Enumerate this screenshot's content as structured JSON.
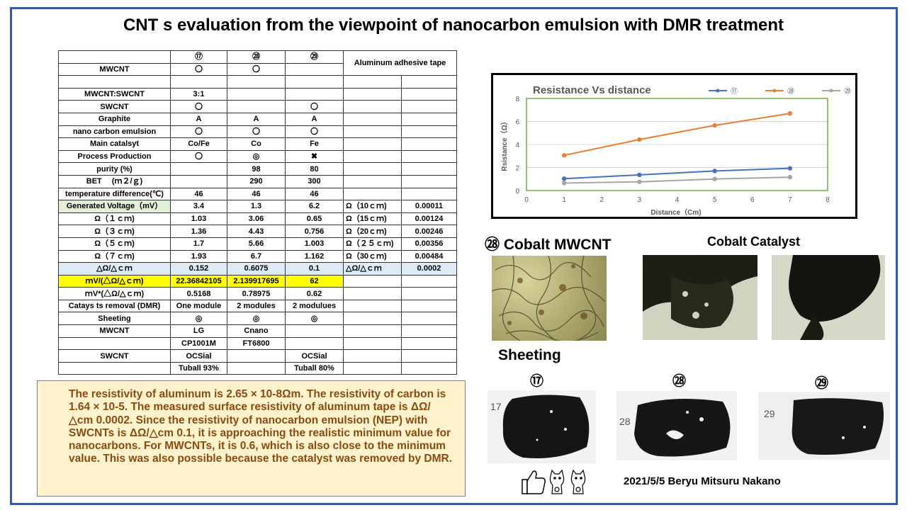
{
  "title": "CNT s  evaluation from the viewpoint of nanocarbon emulsion with DMR treatment",
  "table": {
    "rows": [
      {
        "c": [
          "",
          "⑰",
          "㉘",
          "㉙",
          "Aluminum adhesive tape",
          ""
        ]
      },
      {
        "c": [
          "MWCNT",
          "〇",
          "〇",
          "",
          "",
          ""
        ]
      },
      {
        "c": [
          "",
          "",
          "",
          "",
          "",
          ""
        ]
      },
      {
        "c": [
          "MWCNT:SWCNT",
          "3:1",
          "",
          "",
          "",
          ""
        ]
      },
      {
        "c": [
          "SWCNT",
          "〇",
          "",
          "〇",
          "",
          ""
        ]
      },
      {
        "c": [
          "Graphite",
          "A",
          "A",
          "A",
          "",
          ""
        ]
      },
      {
        "c": [
          "nano carbon emulsion",
          "〇",
          "〇",
          "〇",
          "",
          ""
        ]
      },
      {
        "c": [
          "Main catalsyt",
          "Co/Fe",
          "Co",
          "Fe",
          "",
          ""
        ]
      },
      {
        "c": [
          "Process Production",
          "〇",
          "◎",
          "✖",
          "",
          ""
        ]
      },
      {
        "c": [
          "purity (%)",
          "",
          "98",
          "80",
          "",
          ""
        ]
      },
      {
        "c": [
          "BET　 (ｍ２/ｇ)",
          "",
          "290",
          "300",
          "",
          ""
        ]
      },
      {
        "c": [
          "temperature difference(℃)",
          "46",
          "46",
          "46",
          "",
          ""
        ]
      },
      {
        "c": [
          "Generated Voltage（mV）",
          "3.4",
          "1.3",
          "6.2",
          "Ω（10ｃｍ)",
          "0.00011"
        ]
      },
      {
        "c": [
          "Ω（１ｃｍ)",
          "1.03",
          "3.06",
          "0.65",
          "Ω（15ｃｍ)",
          "0.00124"
        ]
      },
      {
        "c": [
          "Ω（３ｃｍ)",
          "1.36",
          "4.43",
          "0.756",
          "Ω（20ｃｍ)",
          "0.00246"
        ]
      },
      {
        "c": [
          "Ω（５ｃｍ)",
          "1.7",
          "5.66",
          "1.003",
          "Ω（２５ｃｍ)",
          "0.00356"
        ]
      },
      {
        "c": [
          "Ω（７ｃｍ)",
          "1.93",
          "6.7",
          "1.162",
          "Ω（30ｃｍ)",
          "0.00484"
        ]
      },
      {
        "c": [
          "△Ω/△ｃｍ",
          "0.152",
          "0.6075",
          "0.1",
          "△Ω/△ｃｍ",
          "0.0002"
        ]
      },
      {
        "c": [
          "ｍV/(△Ω/△ｃｍ)",
          "22.36842105",
          "2.139917695",
          "62",
          "",
          ""
        ]
      },
      {
        "c": [
          "ｍV*(△Ω/△ｃｍ)",
          "0.5168",
          "0.78975",
          "0.62",
          "",
          ""
        ]
      },
      {
        "c": [
          "Catays ts removal (DMR)",
          "One module",
          "2 modules",
          "2 modulues",
          "",
          ""
        ]
      },
      {
        "c": [
          "Sheeting",
          "◎",
          "◎",
          "◎",
          "",
          ""
        ]
      },
      {
        "c": [
          "MWCNT",
          "LG",
          "Cnano",
          "",
          "",
          ""
        ]
      },
      {
        "c": [
          "",
          "CP1001M",
          "FT6800",
          "",
          "",
          ""
        ]
      },
      {
        "c": [
          "SWCNT",
          "OCSial",
          "",
          "OCSial",
          "",
          ""
        ]
      },
      {
        "c": [
          "",
          "Tuball 93%",
          "",
          "Tuball 80%",
          "",
          ""
        ]
      }
    ]
  },
  "note": {
    "text": "The resistivity of aluminum is 2.65 × 10-8Ωm. The resistivity of carbon is 1.64 × 10-5. The measured surface resistivity of aluminum tape is ΔΩ/△cm 0.0002.  Since the resistivity of nanocarbon emulsion (NEP) with SWCNTs is ΔΩ/△cm 0.1, it is approaching the realistic minimum value for nanocarbons. For MWCNTs, it is 0.6, which is also close to the minimum value. This was also possible because the catalyst was removed by DMR."
  },
  "chart_data": {
    "type": "line",
    "title": "Resistance Vs distance",
    "xlabel": "Distance（Cm)",
    "ylabel": "Rsistance（Ω）",
    "xlim": [
      0,
      8
    ],
    "ylim": [
      0,
      8
    ],
    "xticks": [
      "0",
      "1",
      "2",
      "3",
      "4",
      "5",
      "6",
      "7",
      "8"
    ],
    "yticks": [
      "0",
      "2",
      "4",
      "6",
      "8"
    ],
    "x": [
      1,
      3,
      5,
      7
    ],
    "series": [
      {
        "name": "⑰",
        "values": [
          1.03,
          1.36,
          1.7,
          1.93
        ],
        "color": "#4472c4"
      },
      {
        "name": "㉘",
        "values": [
          3.06,
          4.43,
          5.66,
          6.7
        ],
        "color": "#ed7d31"
      },
      {
        "name": "㉙",
        "values": [
          0.65,
          0.756,
          1.003,
          1.162
        ],
        "color": "#a5a5a5"
      }
    ],
    "legend": "top-right",
    "plot_border_color": "#70ad47"
  },
  "labels": {
    "cobalt_mwcnt": "㉘  Cobalt  MWCNT",
    "cobalt_catalyst": "Cobalt Catalyst",
    "sheeting": "Sheeting",
    "sheet_17": "⑰",
    "sheet_28": "㉘",
    "sheet_29": "㉙",
    "credit": "2021/5/5 Beryu Mitsuru Nakano",
    "handwritten_17": "17",
    "handwritten_28": "28",
    "handwritten_29": "29"
  },
  "icons": [
    "thumbs-up-icon",
    "lucky-cat-icon",
    "lucky-cat-icon"
  ]
}
